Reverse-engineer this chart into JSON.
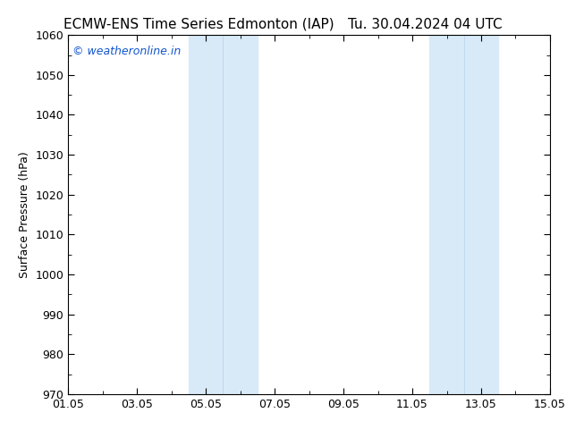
{
  "title_left": "ECMW-ENS Time Series Edmonton (IAP)",
  "title_right": "Tu. 30.04.2024 04 UTC",
  "ylabel": "Surface Pressure (hPa)",
  "xlim_start": 0.0,
  "xlim_end": 14.0,
  "ylim_bottom": 970,
  "ylim_top": 1060,
  "ytick_interval": 10,
  "xtick_labels": [
    "01.05",
    "03.05",
    "05.05",
    "07.05",
    "09.05",
    "11.05",
    "13.05",
    "15.05"
  ],
  "xtick_positions": [
    0,
    2,
    4,
    6,
    8,
    10,
    12,
    14
  ],
  "shaded_regions": [
    {
      "xmin": 3.833,
      "xmax": 4.5
    },
    {
      "xmin": 4.5,
      "xmax": 5.5
    },
    {
      "xmin": 10.833,
      "xmax": 11.5
    },
    {
      "xmin": 11.5,
      "xmax": 12.5
    }
  ],
  "shaded_colors": [
    "#d6e9f8",
    "#ddeeff",
    "#d6e9f8",
    "#ddeeff"
  ],
  "watermark_text": "© weatheronline.in",
  "watermark_color": "#1155cc",
  "background_color": "#ffffff",
  "axes_background_color": "#ffffff",
  "title_fontsize": 11,
  "ylabel_fontsize": 9,
  "tick_fontsize": 9,
  "spine_color": "#000000"
}
